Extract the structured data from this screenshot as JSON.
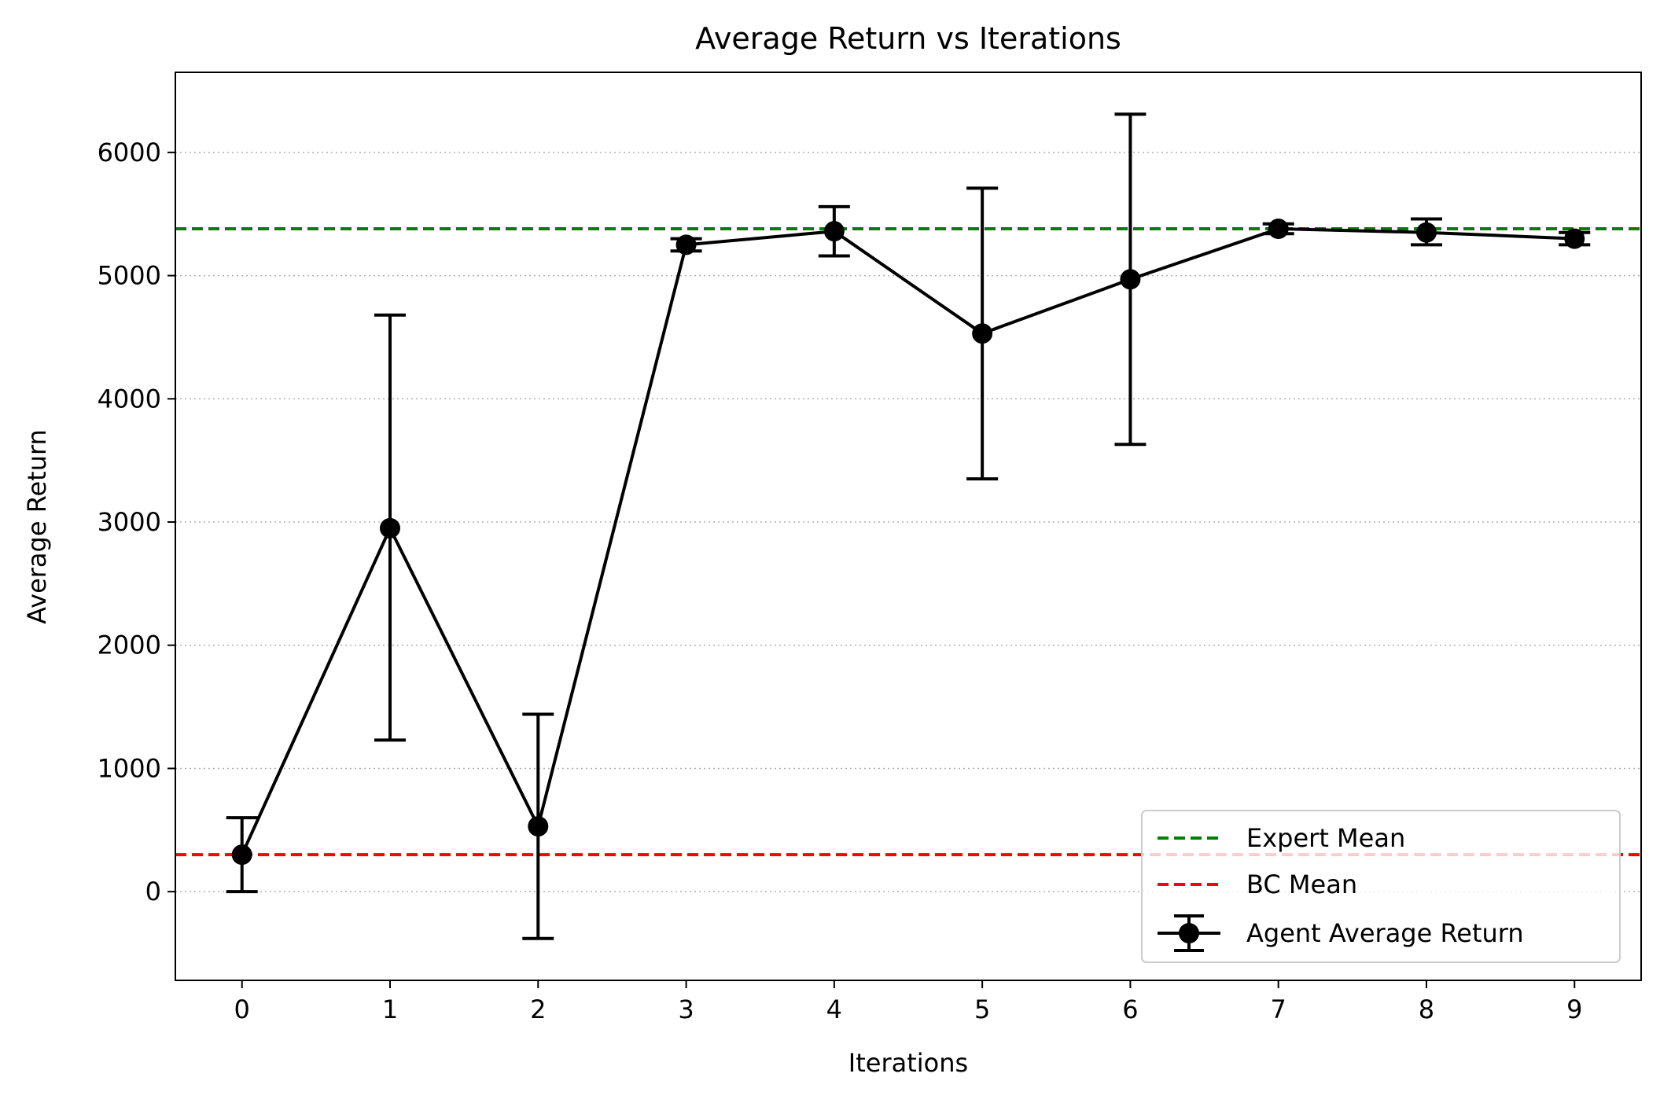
{
  "chart_data": {
    "type": "line",
    "title": "Average Return vs Iterations",
    "xlabel": "Iterations",
    "ylabel": "Average Return",
    "xlim": [
      -0.45,
      9.45
    ],
    "ylim": [
      -720,
      6650
    ],
    "grid": "y-dotted",
    "legend_position": "lower-right",
    "x_ticks": [
      0,
      1,
      2,
      3,
      4,
      5,
      6,
      7,
      8,
      9
    ],
    "y_ticks": [
      0,
      1000,
      2000,
      3000,
      4000,
      5000,
      6000
    ],
    "series": [
      {
        "name": "Agent Average Return",
        "color": "#000000",
        "style": "line-marker-errorbar",
        "x": [
          0,
          1,
          2,
          3,
          4,
          5,
          6,
          7,
          8,
          9
        ],
        "y": [
          300,
          2950,
          530,
          5250,
          5360,
          4530,
          4970,
          5380,
          5350,
          5300
        ],
        "err_low": [
          0,
          1230,
          -380,
          5200,
          5160,
          3350,
          3630,
          5340,
          5250,
          5250
        ],
        "err_high": [
          600,
          4680,
          1440,
          5300,
          5560,
          5710,
          6310,
          5420,
          5460,
          5350
        ]
      }
    ],
    "reference_lines": [
      {
        "name": "Expert Mean",
        "y": 5380,
        "color": "#008000",
        "style": "dashed"
      },
      {
        "name": "BC Mean",
        "y": 300,
        "color": "#ff0000",
        "style": "dashed"
      }
    ]
  }
}
